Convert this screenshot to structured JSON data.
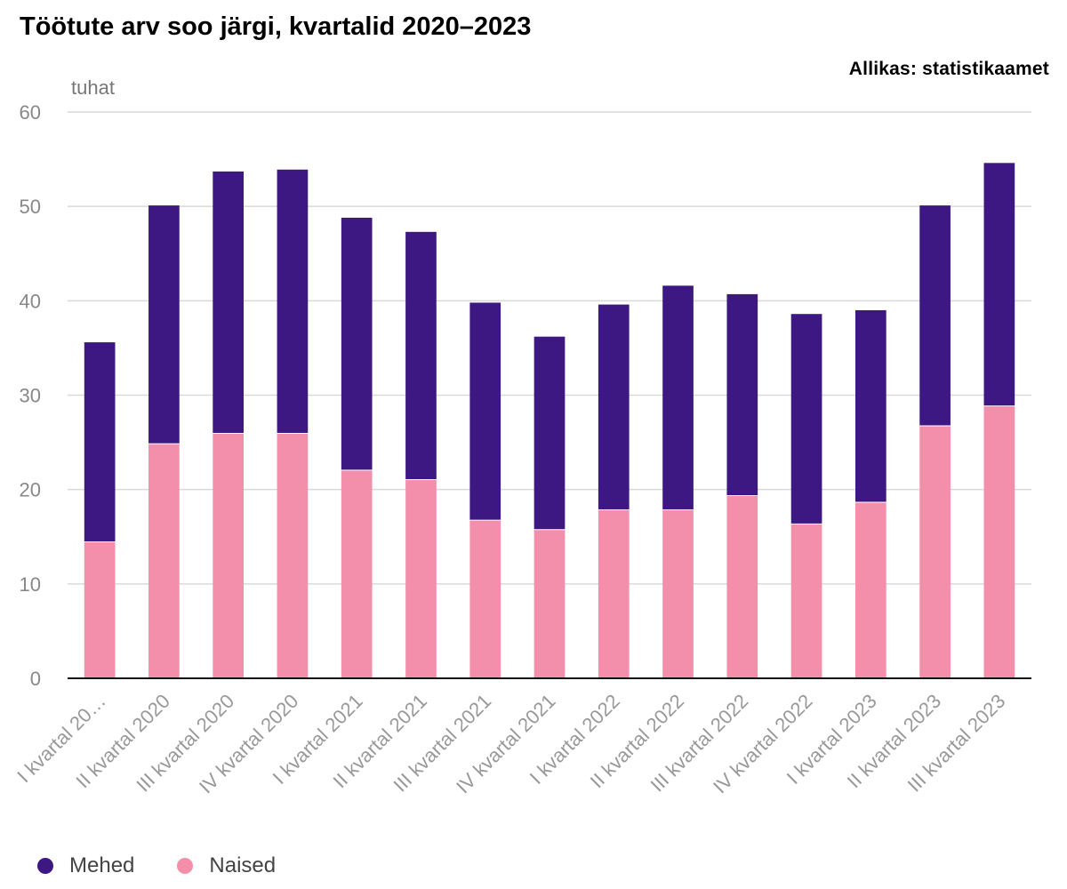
{
  "title": "Töötute arv soo järgi, kvartalid 2020–2023",
  "source": "Allikas: statistikaamet",
  "chart_data": {
    "type": "bar",
    "stacked": true,
    "unit_label": "tuhat",
    "categories": [
      "I kvartal 20…",
      "II kvartal 2020",
      "III kvartal 2020",
      "IV kvartal 2020",
      "I kvartal 2021",
      "II kvartal 2021",
      "III kvartal 2021",
      "IV kvartal 2021",
      "I kvartal 2022",
      "II kvartal 2022",
      "III kvartal 2022",
      "IV kvartal 2022",
      "I kvartal 2023",
      "II kvartal 2023",
      "III kvartal 2023"
    ],
    "series": [
      {
        "name": "Naised",
        "color": "#f48fab",
        "values": [
          14.5,
          24.9,
          26.0,
          26.0,
          22.1,
          21.1,
          16.8,
          15.8,
          17.9,
          17.9,
          19.4,
          16.4,
          18.7,
          26.8,
          28.9
        ]
      },
      {
        "name": "Mehed",
        "color": "#3d1882",
        "values": [
          21.1,
          25.2,
          27.7,
          27.9,
          26.7,
          26.2,
          23.0,
          20.4,
          21.7,
          23.7,
          21.3,
          22.2,
          20.3,
          23.3,
          25.7
        ]
      }
    ],
    "ylim": [
      0,
      60
    ],
    "yticks": [
      0,
      10,
      20,
      30,
      40,
      50,
      60
    ],
    "grid": true,
    "legend_position": "bottom-left"
  },
  "legend": [
    {
      "label": "Mehed",
      "color": "#3d1882"
    },
    {
      "label": "Naised",
      "color": "#f48fab"
    }
  ]
}
